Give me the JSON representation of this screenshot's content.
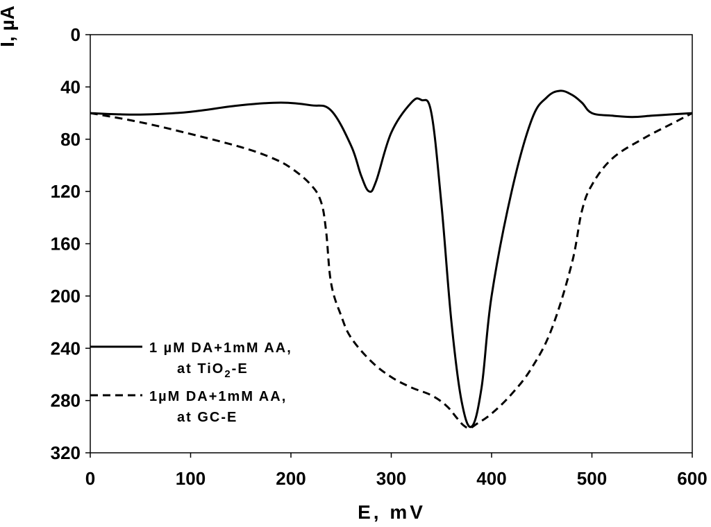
{
  "chart_data": {
    "type": "line",
    "xlabel": "E, mV",
    "ylabel": "I, µA",
    "xlim": [
      0,
      600
    ],
    "ylim": [
      0,
      320
    ],
    "y_inverted": true,
    "grid": false,
    "x_ticks": [
      "0",
      "100",
      "200",
      "300",
      "400",
      "500",
      "600"
    ],
    "y_ticks": [
      "0",
      "40",
      "80",
      "120",
      "160",
      "200",
      "240",
      "280",
      "320"
    ],
    "legend_position": "left-bottom",
    "series": [
      {
        "name": "1 µM DA+1mM AA, at TiO2-E",
        "style": "solid",
        "color": "#000000",
        "x": [
          0,
          30,
          60,
          100,
          150,
          190,
          220,
          240,
          260,
          270,
          278,
          285,
          300,
          320,
          330,
          340,
          350,
          360,
          370,
          380,
          390,
          400,
          420,
          440,
          455,
          468,
          480,
          490,
          500,
          520,
          540,
          560,
          580,
          600
        ],
        "y": [
          60,
          61,
          61,
          59,
          54,
          52,
          54,
          58,
          85,
          108,
          120,
          112,
          75,
          52,
          50,
          60,
          130,
          220,
          280,
          300,
          270,
          200,
          120,
          65,
          48,
          43,
          46,
          52,
          60,
          62,
          63,
          62,
          61,
          60
        ]
      },
      {
        "name": "1µM DA+1mM AA, at GC-E",
        "style": "dashed",
        "color": "#000000",
        "x": [
          0,
          50,
          100,
          150,
          180,
          200,
          220,
          230,
          235,
          240,
          250,
          260,
          280,
          300,
          320,
          340,
          355,
          365,
          372,
          378,
          385,
          400,
          420,
          440,
          460,
          480,
          490,
          500,
          520,
          550,
          580,
          600
        ],
        "y": [
          60,
          67,
          76,
          86,
          94,
          102,
          115,
          128,
          150,
          190,
          215,
          232,
          250,
          262,
          270,
          276,
          284,
          293,
          299,
          301,
          298,
          290,
          275,
          255,
          225,
          175,
          135,
          115,
          95,
          80,
          68,
          60
        ]
      }
    ]
  }
}
